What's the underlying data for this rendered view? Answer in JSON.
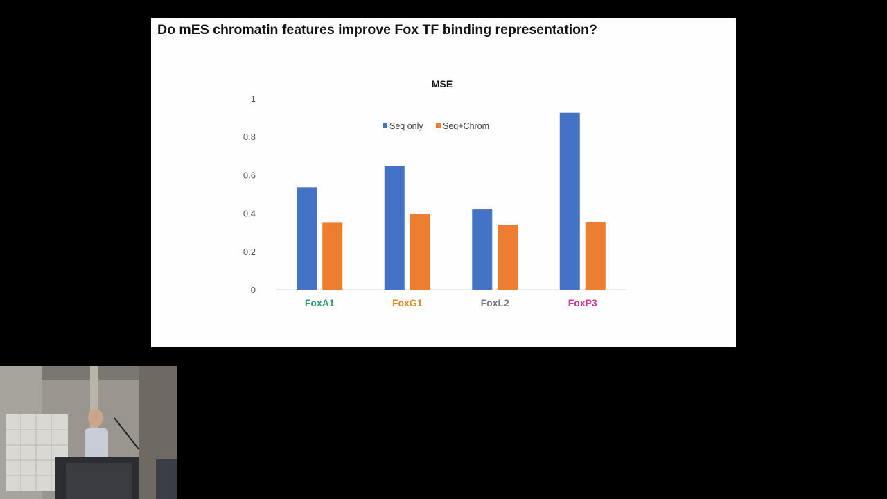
{
  "slide": {
    "title": "Do mES chromatin features improve Fox TF binding representation?"
  },
  "chart_data": {
    "type": "bar",
    "title": "MSE",
    "xlabel": "",
    "ylabel": "",
    "categories": [
      "FoxA1",
      "FoxG1",
      "FoxL2",
      "FoxP3"
    ],
    "category_colors": [
      "#2e9e6b",
      "#e08a2a",
      "#7d7390",
      "#d4368c"
    ],
    "ylim": [
      0,
      1
    ],
    "yticks": [
      "0",
      "0.2",
      "0.4",
      "0.6",
      "0.8",
      "1"
    ],
    "legend_position": "top-center",
    "grid": false,
    "series": [
      {
        "name": "Seq only",
        "color": "#4472c4",
        "values": [
          0.535,
          0.645,
          0.42,
          0.925
        ]
      },
      {
        "name": "Seq+Chrom",
        "color": "#ed7d31",
        "values": [
          0.35,
          0.395,
          0.34,
          0.355
        ]
      }
    ]
  },
  "webcam": {
    "description_icon": "presenter-video-icon"
  }
}
